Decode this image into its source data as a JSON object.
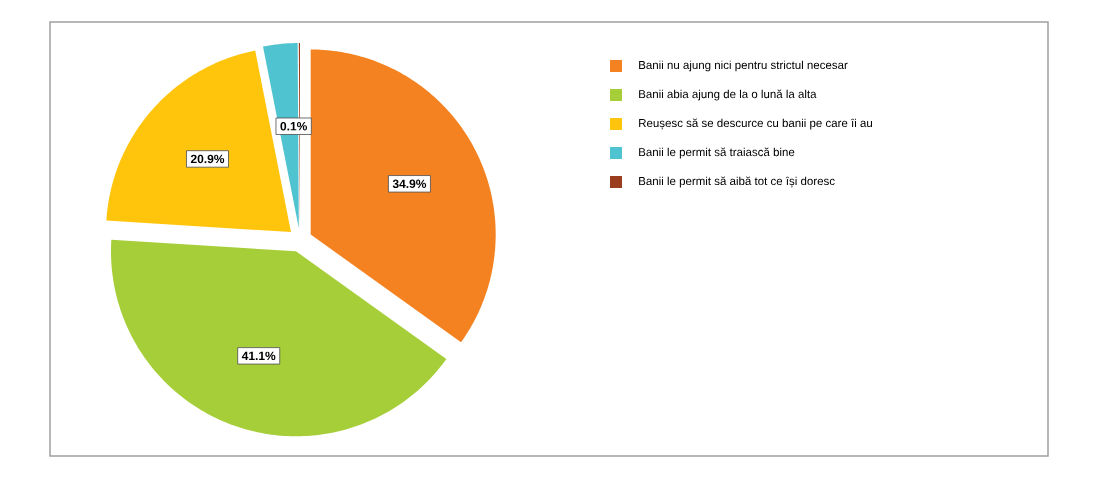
{
  "chart_data": {
    "type": "pie",
    "categories": [
      "Banii nu ajung nici pentru strictul necesar",
      "Banii abia ajung de la o lună la alta",
      "Reușesc să se descurce cu banii pe care îi au",
      "Banii le permit să traiască bine",
      "Banii le permit să aibă tot ce își doresc"
    ],
    "values": [
      34.9,
      41.1,
      20.9,
      3.0,
      0.1
    ],
    "colors": [
      "#f58220",
      "#a6ce39",
      "#ffc50d",
      "#4fc3cf",
      "#9b3d1f"
    ],
    "value_labels": [
      "34.9%",
      "41.1%",
      "20.9%",
      null,
      "0.1%"
    ],
    "legend": "right"
  }
}
